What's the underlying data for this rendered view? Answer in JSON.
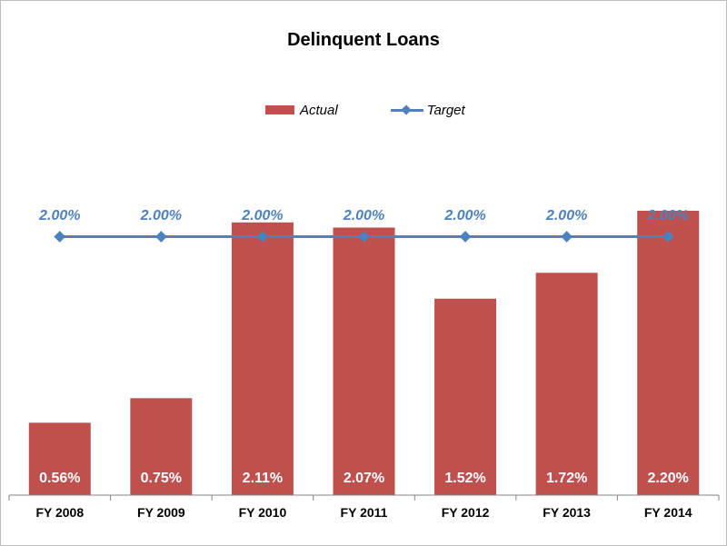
{
  "chart_data": {
    "type": "bar",
    "title": "Delinquent Loans",
    "categories": [
      "FY 2008",
      "FY 2009",
      "FY 2010",
      "FY 2011",
      "FY 2012",
      "FY 2013",
      "FY 2014"
    ],
    "series": [
      {
        "name": "Actual",
        "type": "bar",
        "values": [
          0.56,
          0.75,
          2.11,
          2.07,
          1.52,
          1.72,
          2.2
        ],
        "labels": [
          "0.56%",
          "0.75%",
          "2.11%",
          "2.07%",
          "1.52%",
          "1.72%",
          "2.20%"
        ],
        "color": "#c0504d"
      },
      {
        "name": "Target",
        "type": "line",
        "values": [
          2.0,
          2.0,
          2.0,
          2.0,
          2.0,
          2.0,
          2.0
        ],
        "labels": [
          "2.00%",
          "2.00%",
          "2.00%",
          "2.00%",
          "2.00%",
          "2.00%",
          "2.00%"
        ],
        "color": "#4f81bd"
      }
    ],
    "ylim": [
      0,
      2.2
    ],
    "grid": false,
    "legend_position": "top"
  }
}
